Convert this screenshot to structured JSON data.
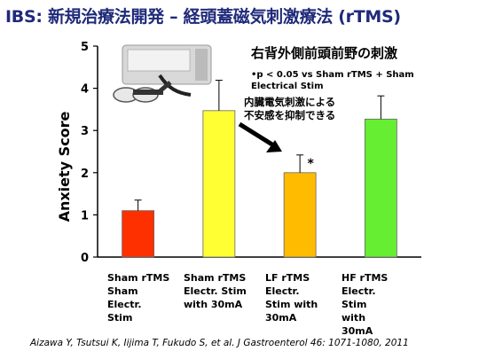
{
  "slide": {
    "title": "IBS: 新規治療法開発 – 経頭蓋磁気刺激療法 (rTMS)",
    "subtitle": "右背外側前頭前野の刺激",
    "stat_note": "•p < 0.05  vs Sham rTMS + Sham Electrical Stim",
    "annotation": "内臓電気刺激による\n不安感を抑制できる",
    "citation": "Aizawa Y, Tsutsui K, Iijima T, Fukudo S, et al. J Gastroenterol 46: 1071-1080, 2011"
  },
  "colors": {
    "title": "#1f2a7a",
    "bars": [
      "#ff3000",
      "#ffff33",
      "#ffbb00",
      "#66ee33"
    ],
    "error_bar": "#000000"
  },
  "chart_data": {
    "type": "bar",
    "ylabel": "Anxiety  Score",
    "ylim": [
      0,
      5
    ],
    "yticks": [
      "0",
      "1",
      "2",
      "3",
      "4",
      "5"
    ],
    "categories": [
      "Sham rTMS\nSham\nElectr.\nStim",
      "Sham rTMS\nElectr. Stim\nwith 30mA",
      "LF rTMS\nElectr.\nStim with\n30mA",
      "HF rTMS\nElectr.\nStim\nwith\n30mA"
    ],
    "values": [
      1.1,
      3.47,
      2.0,
      3.27
    ],
    "errors": [
      0.25,
      0.72,
      0.42,
      0.55
    ],
    "significance_labels": [
      "",
      "",
      "*",
      ""
    ],
    "grid": false,
    "legend": "none"
  }
}
